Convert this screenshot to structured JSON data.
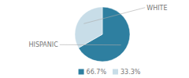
{
  "chart_data": {
    "type": "pie",
    "categories": [
      "HISPANIC",
      "WHITE"
    ],
    "values": [
      66.7,
      33.3
    ],
    "value_labels": [
      "66.7%",
      "33.3%"
    ],
    "colors": [
      "#2e7fa0",
      "#c8dde8"
    ],
    "legend": "bottom"
  }
}
